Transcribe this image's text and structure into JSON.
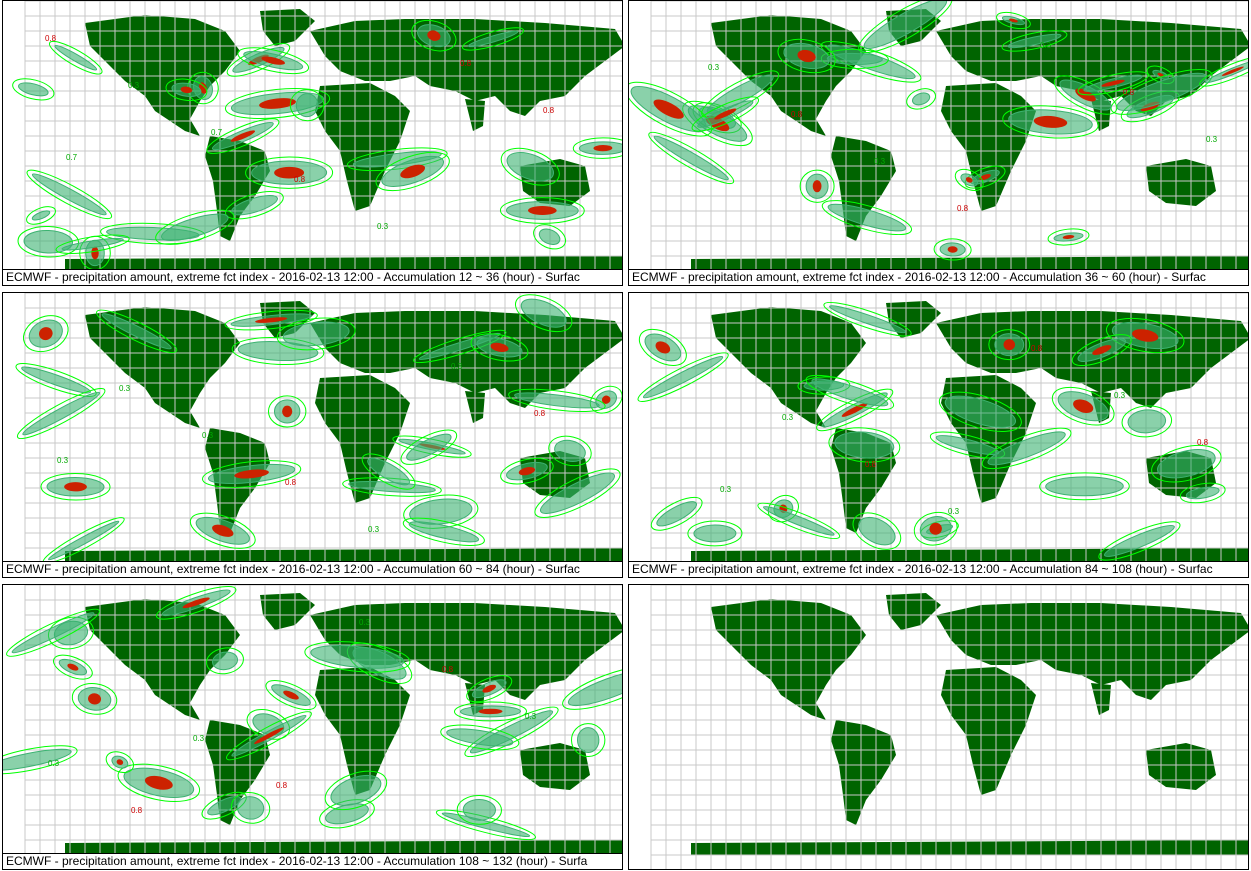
{
  "panels": [
    {
      "caption": "ECMWF - precipitation amount, extreme fct index - 2016-02-13 12:00 - Accumulation  12 ~  36 (hour) - Surfac",
      "labels": [
        "0.8",
        "0.3",
        "0.7",
        "0.8",
        "0.3",
        "0.8",
        "0.8",
        "0.7"
      ]
    },
    {
      "caption": "ECMWF - precipitation amount, extreme fct index - 2016-02-13 12:00 - Accumulation  36 ~  60 (hour) - Surfac",
      "labels": [
        "0.3",
        "0.8",
        "0.3",
        "0.8",
        "0.3",
        "0.8",
        "0.3"
      ]
    },
    {
      "caption": "ECMWF - precipitation amount, extreme fct index - 2016-02-13 12:00 - Accumulation  60 ~  84 (hour) - Surfac",
      "labels": [
        "0.3",
        "0.3",
        "0.8",
        "0.3",
        "0.3",
        "0.8",
        "0.3"
      ]
    },
    {
      "caption": "ECMWF - precipitation amount, extreme fct index - 2016-02-13 12:00 - Accumulation  84 ~ 108 (hour) - Surfac",
      "labels": [
        "0.3",
        "0.8",
        "0.3",
        "0.8",
        "0.3",
        "0.8",
        "0.3"
      ]
    },
    {
      "caption": "ECMWF - precipitation amount, extreme fct index - 2016-02-13 12:00 - Accumulation 108 ~ 132 (hour) - Surfa",
      "labels": [
        "0.3",
        "0.8",
        "0.3",
        "0.8",
        "0.3",
        "0.3",
        "0.8"
      ]
    },
    {
      "caption": "",
      "labels": []
    }
  ],
  "colors": {
    "land": "#006400",
    "grid": "#c8c8c8",
    "contour_light": "#00ff00",
    "contour_mid": "#3cb371",
    "extreme": "#cc2200",
    "value_label_low": "#00aa00",
    "value_label_high": "#cc0000"
  }
}
